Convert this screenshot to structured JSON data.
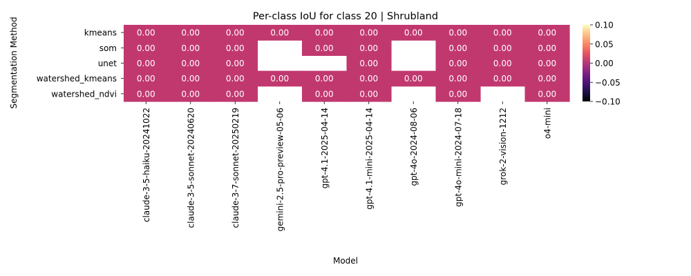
{
  "chart_data": {
    "type": "heatmap",
    "title": "Per-class IoU for class 20 | Shrubland",
    "xlabel": "Model",
    "ylabel": "Segmentation Method",
    "x_categories": [
      "claude-3-5-haiku-20241022",
      "claude-3-5-sonnet-20240620",
      "claude-3-7-sonnet-20250219",
      "gemini-2.5-pro-preview-05-06",
      "gpt-4.1-2025-04-14",
      "gpt-4.1-mini-2025-04-14",
      "gpt-4o-2024-08-06",
      "gpt-4o-mini-2024-07-18",
      "grok-2-vision-1212",
      "o4-mini"
    ],
    "y_categories": [
      "kmeans",
      "som",
      "unet",
      "watershed_kmeans",
      "watershed_ndvi"
    ],
    "values": [
      [
        0.0,
        0.0,
        0.0,
        0.0,
        0.0,
        0.0,
        0.0,
        0.0,
        0.0,
        0.0
      ],
      [
        0.0,
        0.0,
        0.0,
        null,
        0.0,
        0.0,
        null,
        0.0,
        0.0,
        0.0
      ],
      [
        0.0,
        0.0,
        0.0,
        null,
        null,
        0.0,
        null,
        0.0,
        0.0,
        0.0
      ],
      [
        0.0,
        0.0,
        0.0,
        0.0,
        0.0,
        0.0,
        0.0,
        0.0,
        0.0,
        0.0
      ],
      [
        0.0,
        0.0,
        0.0,
        null,
        0.0,
        0.0,
        null,
        0.0,
        null,
        0.0
      ]
    ],
    "value_format_decimals": 2,
    "cell_color": "#c1386f",
    "colormap": "magma",
    "colorbar": {
      "range": [
        -0.1,
        0.1
      ],
      "ticks": [
        "0.10",
        "0.05",
        "0.00",
        "−0.05",
        "−0.10"
      ],
      "tick_values": [
        0.1,
        0.05,
        0.0,
        -0.05,
        -0.1
      ]
    }
  }
}
